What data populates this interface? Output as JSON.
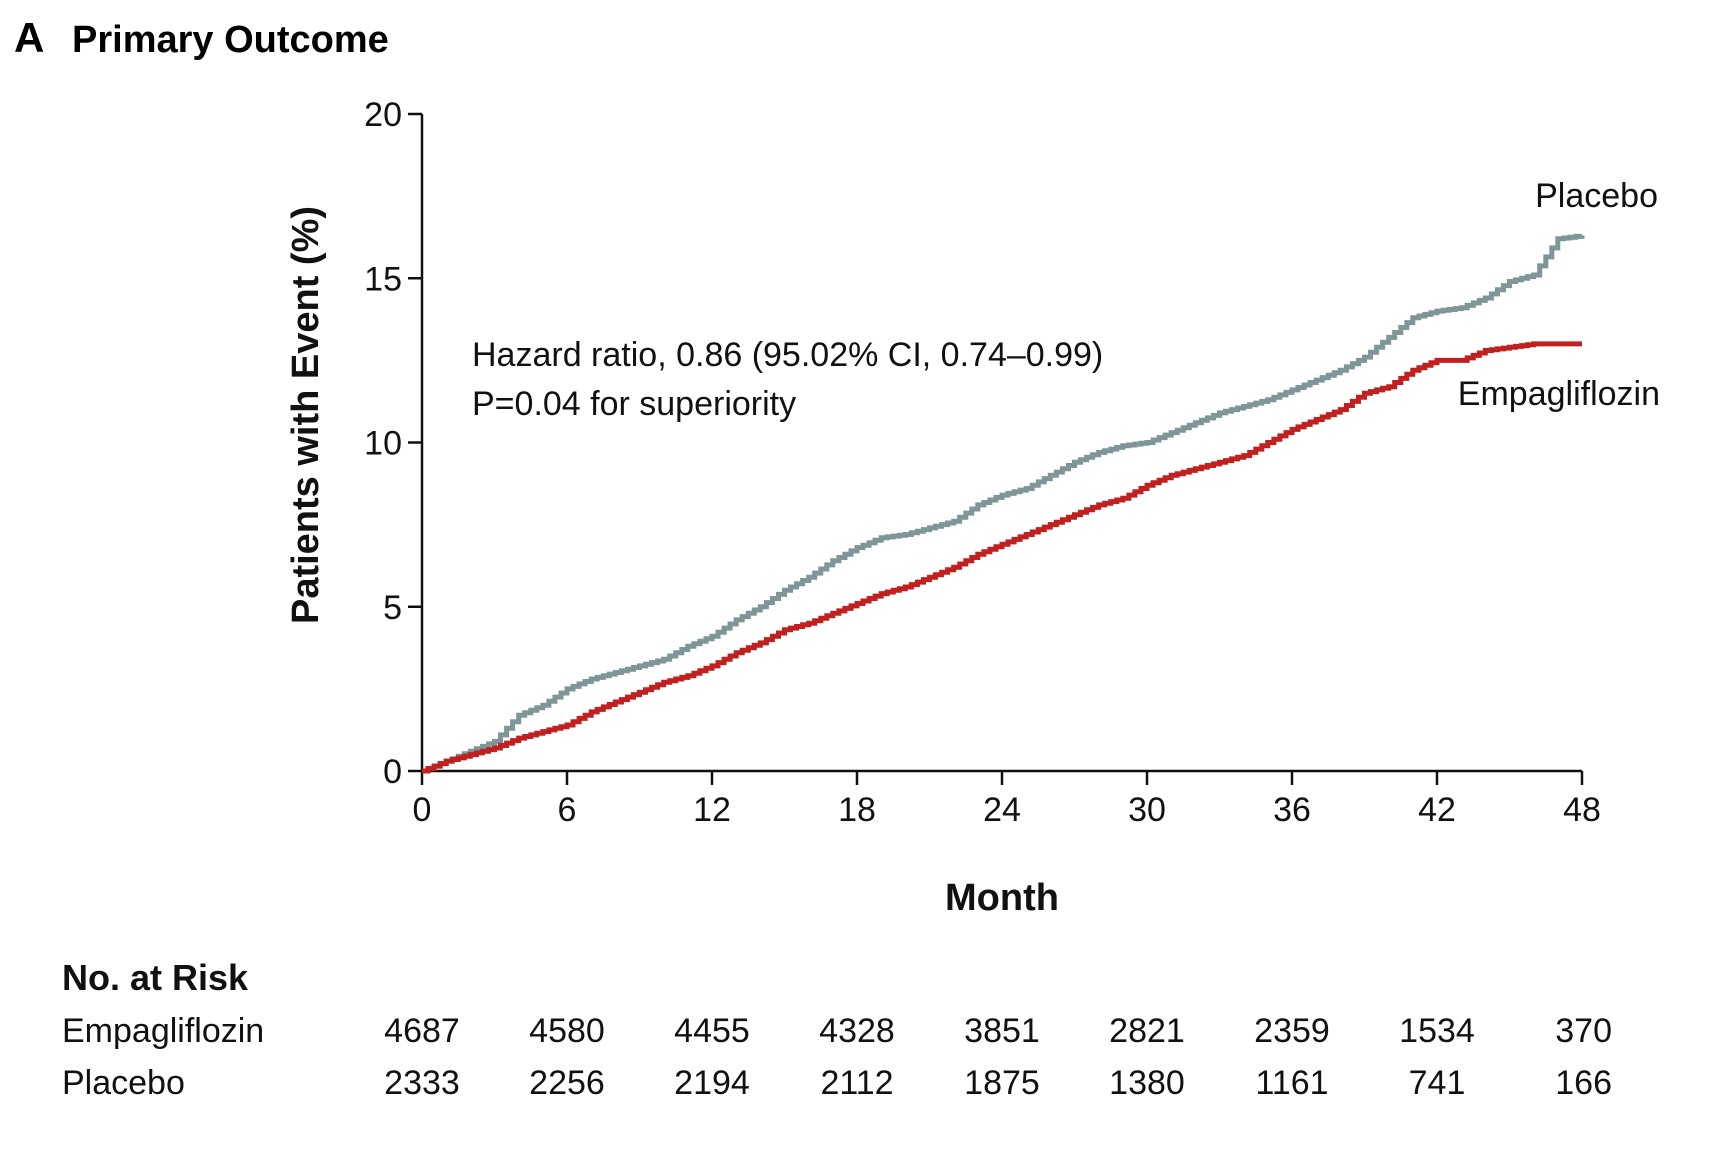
{
  "panel": {
    "letter": "A",
    "title": "Primary Outcome"
  },
  "chart_data": {
    "type": "line",
    "step": true,
    "xlabel": "Month",
    "ylabel": "Patients with Event (%)",
    "xlim": [
      0,
      48
    ],
    "ylim": [
      0,
      20
    ],
    "xticks": [
      0,
      6,
      12,
      18,
      24,
      30,
      36,
      42,
      48
    ],
    "yticks": [
      0,
      5,
      10,
      15,
      20
    ],
    "annotation": [
      "Hazard ratio, 0.86 (95.02% CI, 0.74–0.99)",
      "P=0.04 for superiority"
    ],
    "colors": {
      "placebo": "#7f9699",
      "empagliflozin": "#c0201f"
    },
    "series": [
      {
        "name": "Placebo",
        "x": [
          0,
          1,
          2,
          3,
          4,
          5,
          6,
          7,
          8,
          9,
          10,
          11,
          12,
          13,
          14,
          15,
          16,
          17,
          18,
          19,
          20,
          21,
          22,
          23,
          24,
          25,
          26,
          27,
          28,
          29,
          30,
          31,
          32,
          33,
          34,
          35,
          36,
          37,
          38,
          39,
          40,
          41,
          42,
          43,
          44,
          45,
          46,
          47,
          48
        ],
        "values": [
          0,
          0.3,
          0.6,
          0.9,
          1.7,
          2.0,
          2.5,
          2.8,
          3.0,
          3.2,
          3.4,
          3.8,
          4.1,
          4.6,
          5.0,
          5.5,
          5.9,
          6.4,
          6.8,
          7.1,
          7.2,
          7.4,
          7.6,
          8.1,
          8.4,
          8.6,
          9.0,
          9.4,
          9.7,
          9.9,
          10.0,
          10.3,
          10.6,
          10.9,
          11.1,
          11.3,
          11.6,
          11.9,
          12.2,
          12.6,
          13.2,
          13.8,
          14.0,
          14.1,
          14.4,
          14.9,
          15.1,
          16.2,
          16.3
        ]
      },
      {
        "name": "Empagliflozin",
        "x": [
          0,
          1,
          2,
          3,
          4,
          5,
          6,
          7,
          8,
          9,
          10,
          11,
          12,
          13,
          14,
          15,
          16,
          17,
          18,
          19,
          20,
          21,
          22,
          23,
          24,
          25,
          26,
          27,
          28,
          29,
          30,
          31,
          32,
          33,
          34,
          35,
          36,
          37,
          38,
          39,
          40,
          41,
          42,
          43,
          44,
          45,
          46,
          47,
          48
        ],
        "values": [
          0,
          0.3,
          0.5,
          0.7,
          1.0,
          1.2,
          1.4,
          1.8,
          2.1,
          2.4,
          2.7,
          2.9,
          3.2,
          3.6,
          3.9,
          4.3,
          4.5,
          4.8,
          5.1,
          5.4,
          5.6,
          5.9,
          6.2,
          6.6,
          6.9,
          7.2,
          7.5,
          7.8,
          8.1,
          8.3,
          8.7,
          9.0,
          9.2,
          9.4,
          9.6,
          10.0,
          10.4,
          10.7,
          11.0,
          11.5,
          11.7,
          12.2,
          12.5,
          12.5,
          12.8,
          12.9,
          13.0,
          13.0,
          13.0
        ]
      }
    ]
  },
  "risk_table": {
    "heading": "No. at Risk",
    "months": [
      0,
      6,
      12,
      18,
      24,
      30,
      36,
      42,
      48
    ],
    "rows": [
      {
        "label": "Empagliflozin",
        "values": [
          "4687",
          "4580",
          "4455",
          "4328",
          "3851",
          "2821",
          "2359",
          "1534",
          "370"
        ]
      },
      {
        "label": "Placebo",
        "values": [
          "2333",
          "2256",
          "2194",
          "2112",
          "1875",
          "1380",
          "1161",
          "741",
          "166"
        ]
      }
    ]
  }
}
